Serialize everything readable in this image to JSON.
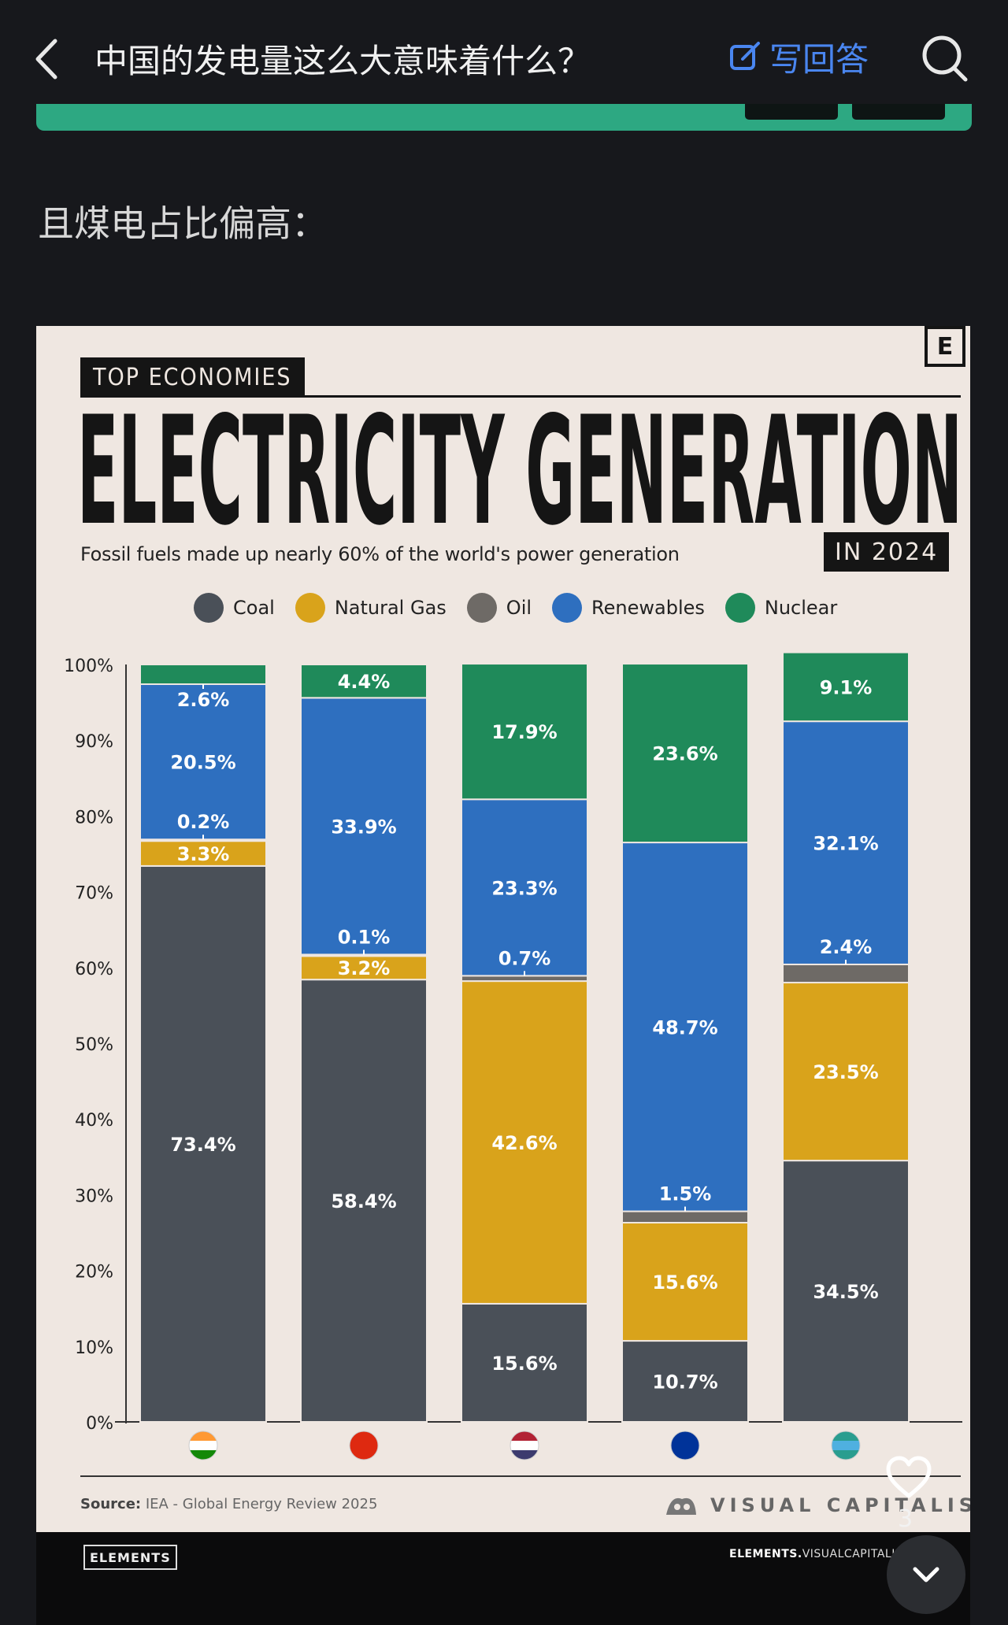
{
  "header": {
    "title": "中国的发电量这么大意味着什么？",
    "answer_label": "写回答"
  },
  "post": {
    "text": "且煤电占比偏高："
  },
  "infographic": {
    "kicker": "TOP ECONOMIES",
    "title": "ELECTRICITY GENERATION",
    "subtitle": "Fossil fuels made up nearly 60% of the world's power generation",
    "year_badge": "IN 2024",
    "brand_badge": "E",
    "source_label": "Source:",
    "source_text": "IEA - Global Energy Review 2025",
    "publisher": "VISUAL CAPITALIST",
    "footer_brand": "ELEMENTS",
    "footer_url_bold": "ELEMENTS.",
    "footer_url_rest": "VISUALCAPITALIST.COM"
  },
  "engagement": {
    "likes": "3"
  },
  "colors": {
    "coal": "#4a5058",
    "gas": "#d9a31b",
    "oil": "#6e6a66",
    "renewables": "#2e6fbf",
    "nuclear": "#1f8a5a",
    "accent": "#4a86f0"
  },
  "chart_data": {
    "type": "bar",
    "stacked": true,
    "categories": [
      "INDIA",
      "CHINA",
      "US",
      "EU",
      "GLOBAL AVG."
    ],
    "y_ticks": [
      "0%",
      "10%",
      "20%",
      "30%",
      "40%",
      "50%",
      "60%",
      "70%",
      "80%",
      "90%",
      "100%"
    ],
    "ylim": [
      0,
      100
    ],
    "series": [
      {
        "name": "Coal",
        "color": "#4a5058",
        "values": [
          73.4,
          58.4,
          15.6,
          10.7,
          34.5
        ],
        "labels": [
          "73.4%",
          "58.4%",
          "15.6%",
          "10.7%",
          "34.5%"
        ]
      },
      {
        "name": "Natural Gas",
        "color": "#d9a31b",
        "values": [
          3.3,
          3.2,
          42.6,
          15.6,
          23.5
        ],
        "labels": [
          "3.3%",
          "3.2%",
          "42.6%",
          "15.6%",
          "23.5%"
        ]
      },
      {
        "name": "Oil",
        "color": "#6e6a66",
        "values": [
          0.2,
          0.1,
          0.7,
          1.5,
          2.4
        ],
        "labels": [
          "0.2%",
          "0.1%",
          "0.7%",
          "1.5%",
          "2.4%"
        ]
      },
      {
        "name": "Renewables",
        "color": "#2e6fbf",
        "values": [
          20.5,
          33.9,
          23.3,
          48.7,
          32.1
        ],
        "labels": [
          "20.5%",
          "33.9%",
          "23.3%",
          "48.7%",
          "32.1%"
        ]
      },
      {
        "name": "Nuclear",
        "color": "#1f8a5a",
        "values": [
          2.6,
          4.4,
          17.9,
          23.6,
          9.1
        ],
        "labels": [
          "2.6%",
          "4.4%",
          "17.9%",
          "23.6%",
          "9.1%"
        ]
      }
    ]
  }
}
